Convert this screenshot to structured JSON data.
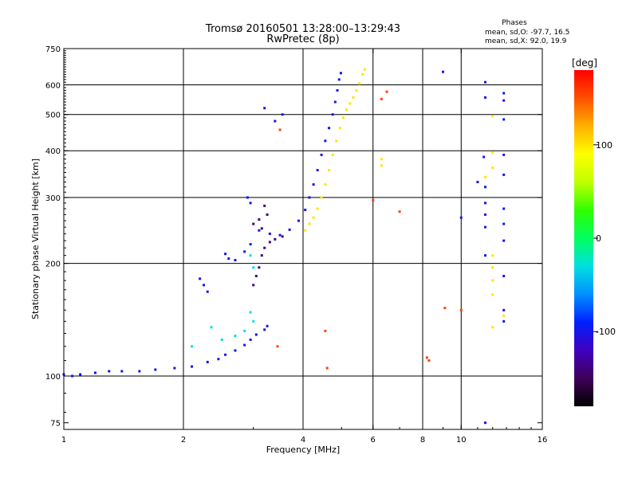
{
  "chart_data": {
    "type": "scatter",
    "title": "Tromsø 20160501 13:28:00–13:29:43",
    "subtitle": "RwPretec (8p)",
    "phase_stats": {
      "heading": "Phases",
      "line_o": "mean, sd,O: -97.7, 16.5",
      "line_x": "mean, sd,X:  92.0, 19.9"
    },
    "xlabel": "Frequency [MHz]",
    "ylabel": "Stationary phase Virtual Height [km]",
    "x_scale": "log",
    "y_scale": "log",
    "xlim": [
      1,
      16
    ],
    "ylim": [
      72,
      750
    ],
    "x_ticks": [
      1,
      2,
      4,
      6,
      8,
      10,
      16
    ],
    "x_tick_labels": [
      "1",
      "2",
      "4",
      "6",
      "8",
      "10",
      "16"
    ],
    "x_gridlines": [
      2,
      4,
      6,
      8,
      10
    ],
    "y_ticks": [
      75,
      100,
      200,
      300,
      400,
      500,
      600,
      750
    ],
    "y_tick_labels": [
      "75",
      "100",
      "200",
      "300",
      "400",
      "500",
      "600",
      "750"
    ],
    "y_gridlines": [
      100,
      200,
      300,
      400,
      500,
      600
    ],
    "grid": true,
    "colorbar": {
      "label": "[deg]",
      "range": [
        -180,
        180
      ],
      "ticks": [
        -100,
        0,
        100
      ],
      "tick_labels": [
        "-100",
        "0",
        "100"
      ],
      "colors": [
        "#000000",
        "#400058",
        "#4000c0",
        "#0020ff",
        "#0090ff",
        "#00e0e0",
        "#00ff60",
        "#30ff00",
        "#c0ff00",
        "#ffff00",
        "#ffb000",
        "#ff5000",
        "#ff0000"
      ]
    },
    "series": [
      {
        "phase": -100,
        "points": [
          [
            1.0,
            101
          ],
          [
            1.05,
            100
          ],
          [
            1.1,
            101
          ],
          [
            1.2,
            102
          ],
          [
            1.3,
            103
          ],
          [
            1.4,
            103
          ],
          [
            1.55,
            103
          ],
          [
            1.7,
            104
          ],
          [
            1.9,
            105
          ],
          [
            2.1,
            106
          ],
          [
            2.3,
            109
          ],
          [
            2.45,
            111
          ],
          [
            2.55,
            114
          ],
          [
            2.7,
            117
          ],
          [
            2.85,
            121
          ],
          [
            2.95,
            125
          ],
          [
            3.05,
            129
          ],
          [
            3.2,
            133
          ],
          [
            3.25,
            136
          ],
          [
            2.2,
            182
          ],
          [
            2.25,
            175
          ],
          [
            2.3,
            168
          ],
          [
            2.55,
            212
          ],
          [
            2.6,
            206
          ],
          [
            2.7,
            204
          ],
          [
            2.85,
            215
          ],
          [
            2.95,
            225
          ],
          [
            3.1,
            245
          ],
          [
            3.3,
            240
          ],
          [
            3.5,
            238
          ],
          [
            3.7,
            246
          ],
          [
            3.9,
            260
          ],
          [
            4.05,
            278
          ],
          [
            4.15,
            300
          ],
          [
            4.25,
            325
          ],
          [
            4.35,
            355
          ],
          [
            4.45,
            390
          ],
          [
            4.55,
            425
          ],
          [
            4.65,
            460
          ],
          [
            4.75,
            500
          ],
          [
            4.82,
            540
          ],
          [
            4.88,
            580
          ],
          [
            4.93,
            620
          ],
          [
            4.98,
            645
          ],
          [
            3.2,
            520
          ],
          [
            3.4,
            480
          ],
          [
            3.55,
            500
          ],
          [
            2.9,
            300
          ],
          [
            2.95,
            290
          ],
          [
            9.0,
            650
          ],
          [
            11.5,
            610
          ],
          [
            11.5,
            555
          ],
          [
            12.8,
            570
          ],
          [
            12.8,
            545
          ],
          [
            12.8,
            485
          ],
          [
            11.4,
            385
          ],
          [
            12.8,
            390
          ],
          [
            12.8,
            345
          ],
          [
            11.0,
            330
          ],
          [
            11.5,
            320
          ],
          [
            10.0,
            265
          ],
          [
            12.8,
            280
          ],
          [
            12.8,
            255
          ],
          [
            12.8,
            230
          ],
          [
            11.5,
            290
          ],
          [
            11.5,
            270
          ],
          [
            11.5,
            250
          ],
          [
            11.5,
            210
          ],
          [
            12.8,
            185
          ],
          [
            12.8,
            150
          ],
          [
            12.8,
            140
          ],
          [
            11.5,
            75
          ]
        ]
      },
      {
        "phase": -140,
        "points": [
          [
            3.0,
            175
          ],
          [
            3.05,
            185
          ],
          [
            3.1,
            195
          ],
          [
            3.15,
            210
          ],
          [
            3.2,
            220
          ],
          [
            3.3,
            228
          ],
          [
            3.4,
            232
          ],
          [
            3.55,
            236
          ],
          [
            3.2,
            285
          ],
          [
            3.25,
            270
          ],
          [
            3.1,
            262
          ],
          [
            3.0,
            255
          ],
          [
            3.15,
            248
          ]
        ]
      },
      {
        "phase": -30,
        "points": [
          [
            2.5,
            125
          ],
          [
            2.7,
            128
          ],
          [
            2.85,
            132
          ],
          [
            3.0,
            140
          ],
          [
            2.95,
            148
          ],
          [
            2.35,
            135
          ],
          [
            2.1,
            120
          ],
          [
            2.95,
            210
          ],
          [
            3.0,
            195
          ]
        ]
      },
      {
        "phase": 100,
        "points": [
          [
            4.05,
            245
          ],
          [
            4.15,
            255
          ],
          [
            4.25,
            265
          ],
          [
            4.35,
            280
          ],
          [
            4.45,
            300
          ],
          [
            4.55,
            325
          ],
          [
            4.65,
            355
          ],
          [
            4.75,
            390
          ],
          [
            4.85,
            425
          ],
          [
            4.95,
            460
          ],
          [
            5.05,
            490
          ],
          [
            5.15,
            515
          ],
          [
            5.25,
            535
          ],
          [
            5.35,
            555
          ],
          [
            5.45,
            580
          ],
          [
            5.55,
            605
          ],
          [
            5.65,
            640
          ],
          [
            5.72,
            660
          ],
          [
            12.0,
            495
          ],
          [
            12.0,
            395
          ],
          [
            12.0,
            360
          ],
          [
            11.5,
            340
          ],
          [
            12.0,
            210
          ],
          [
            12.0,
            195
          ],
          [
            12.0,
            180
          ],
          [
            12.0,
            165
          ],
          [
            12.0,
            135
          ],
          [
            12.8,
            145
          ],
          [
            6.3,
            380
          ],
          [
            6.3,
            365
          ]
        ]
      },
      {
        "phase": 155,
        "points": [
          [
            6.0,
            295
          ],
          [
            6.5,
            575
          ],
          [
            6.3,
            550
          ],
          [
            7.0,
            275
          ],
          [
            8.2,
            112
          ],
          [
            8.3,
            110
          ],
          [
            9.1,
            152
          ],
          [
            10.0,
            150
          ],
          [
            3.45,
            120
          ],
          [
            4.55,
            132
          ],
          [
            4.6,
            105
          ],
          [
            3.5,
            455
          ]
        ]
      }
    ]
  }
}
